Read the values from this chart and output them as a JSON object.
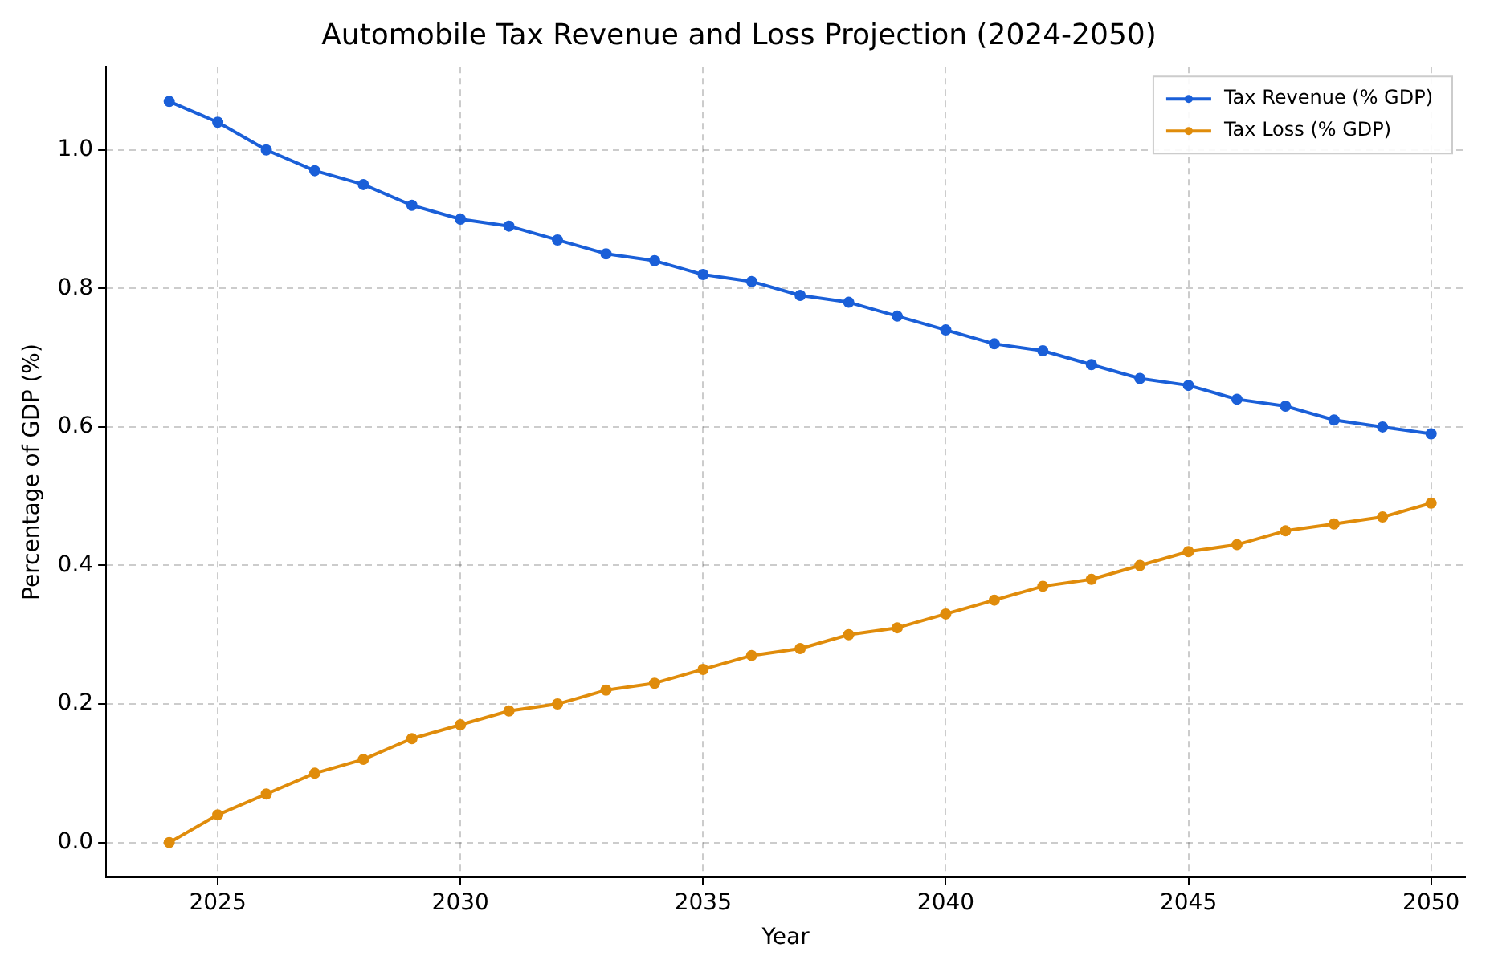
{
  "chart_data": {
    "type": "line",
    "title": "Automobile Tax Revenue and Loss Projection (2024-2050)",
    "xlabel": "Year",
    "ylabel": "Percentage of GDP (%)",
    "x": [
      2024,
      2025,
      2026,
      2027,
      2028,
      2029,
      2030,
      2031,
      2032,
      2033,
      2034,
      2035,
      2036,
      2037,
      2038,
      2039,
      2040,
      2041,
      2042,
      2043,
      2044,
      2045,
      2046,
      2047,
      2048,
      2049,
      2050
    ],
    "series": [
      {
        "name": "Tax Revenue (% GDP)",
        "color": "#1a5fd8",
        "values": [
          1.07,
          1.04,
          1.0,
          0.97,
          0.95,
          0.92,
          0.9,
          0.89,
          0.87,
          0.85,
          0.84,
          0.82,
          0.81,
          0.79,
          0.78,
          0.76,
          0.74,
          0.72,
          0.71,
          0.69,
          0.67,
          0.66,
          0.64,
          0.63,
          0.61,
          0.6,
          0.59
        ]
      },
      {
        "name": "Tax Loss (% GDP)",
        "color": "#e08c0b",
        "values": [
          0.0,
          0.04,
          0.07,
          0.1,
          0.12,
          0.15,
          0.17,
          0.19,
          0.2,
          0.22,
          0.23,
          0.25,
          0.27,
          0.28,
          0.3,
          0.31,
          0.33,
          0.35,
          0.37,
          0.38,
          0.4,
          0.42,
          0.43,
          0.45,
          0.46,
          0.47,
          0.49
        ]
      }
    ],
    "xlim": [
      2022.7,
      2050.7
    ],
    "xticks": [
      2025,
      2030,
      2035,
      2040,
      2045,
      2050
    ],
    "ylim": [
      -0.05,
      1.12
    ],
    "yticks": [
      {
        "value": 0,
        "label": "0.0"
      },
      {
        "value": 0.2,
        "label": "0.2"
      },
      {
        "value": 0.4,
        "label": "0.4"
      },
      {
        "value": 0.6,
        "label": "0.6"
      },
      {
        "value": 0.8,
        "label": "0.8"
      },
      {
        "value": 1,
        "label": "1.0"
      }
    ],
    "grid": true,
    "legend": "top right",
    "marker": "circle",
    "line_style": "solid"
  }
}
